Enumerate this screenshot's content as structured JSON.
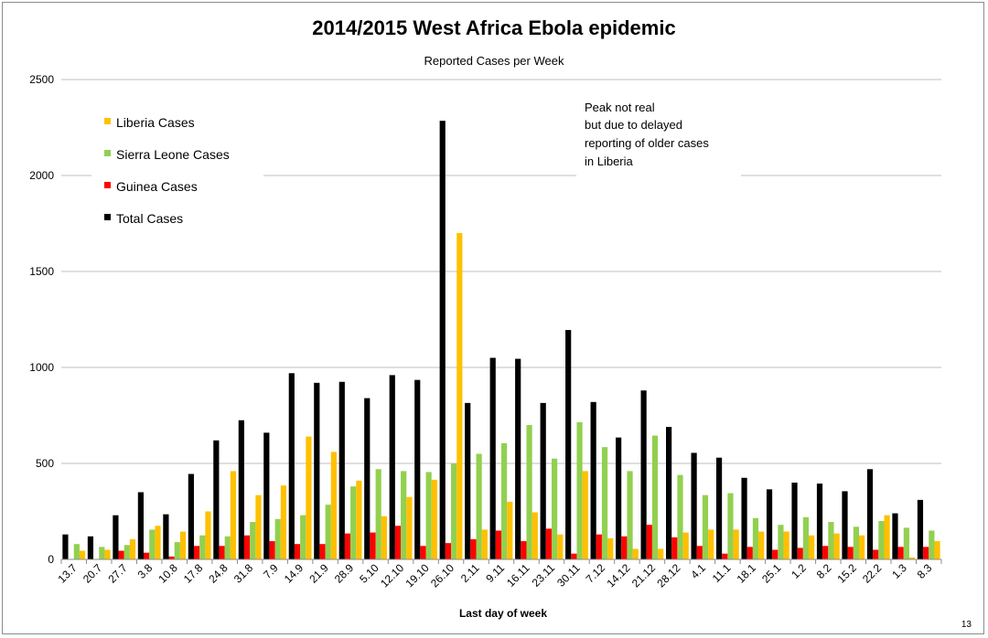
{
  "chart_data": {
    "type": "bar",
    "title": "2014/2015 West Africa Ebola epidemic",
    "subtitle": "Reported Cases per Week",
    "xlabel": "Last day of week",
    "ylabel": "",
    "ylim": [
      0,
      2500
    ],
    "yticks": [
      0,
      500,
      1000,
      1500,
      2000,
      2500
    ],
    "grid": true,
    "categories": [
      "13.7",
      "20.7",
      "27.7",
      "3.8",
      "10.8",
      "17.8",
      "24.8",
      "31.8",
      "7.9",
      "14.9",
      "21.9",
      "28.9",
      "5.10",
      "12.10",
      "19.10",
      "26.10",
      "2.11",
      "9.11",
      "16.11",
      "23.11",
      "30.11",
      "7.12",
      "14.12",
      "21.12",
      "28.12",
      "4.1",
      "11.1",
      "18.1",
      "25.1",
      "1.2",
      "8.2",
      "15.2",
      "22.2",
      "1.3",
      "8.3"
    ],
    "series": [
      {
        "name": "Total Cases",
        "color": "#000000",
        "values": [
          130,
          120,
          230,
          350,
          235,
          445,
          620,
          725,
          660,
          970,
          920,
          925,
          840,
          960,
          935,
          2285,
          815,
          1050,
          1045,
          815,
          1195,
          820,
          635,
          880,
          690,
          555,
          530,
          425,
          365,
          400,
          395,
          355,
          470,
          240,
          310
        ]
      },
      {
        "name": "Guinea Cases",
        "color": "#ff0000",
        "values": [
          0,
          0,
          45,
          35,
          15,
          70,
          70,
          125,
          95,
          80,
          80,
          135,
          140,
          175,
          70,
          85,
          105,
          150,
          95,
          160,
          30,
          130,
          120,
          180,
          115,
          70,
          30,
          65,
          50,
          60,
          70,
          65,
          50,
          65,
          65
        ]
      },
      {
        "name": "Sierra Leone Cases",
        "color": "#92d050",
        "values": [
          80,
          65,
          75,
          155,
          90,
          125,
          120,
          195,
          210,
          230,
          285,
          380,
          470,
          460,
          455,
          500,
          550,
          605,
          700,
          525,
          715,
          585,
          460,
          645,
          440,
          335,
          345,
          215,
          180,
          220,
          195,
          170,
          200,
          165,
          150
        ]
      },
      {
        "name": "Liberia Cases",
        "color": "#ffc000",
        "values": [
          45,
          50,
          105,
          175,
          145,
          250,
          460,
          335,
          385,
          640,
          560,
          410,
          225,
          325,
          415,
          1700,
          155,
          300,
          245,
          130,
          460,
          110,
          55,
          55,
          140,
          155,
          155,
          145,
          145,
          125,
          135,
          125,
          230,
          10,
          95
        ]
      }
    ],
    "legend": [
      "Liberia Cases",
      "Sierra Leone Cases",
      "Guinea Cases",
      "Total Cases"
    ],
    "legend_colors": [
      "#ffc000",
      "#92d050",
      "#ff0000",
      "#000000"
    ],
    "legend_placement": "top-left",
    "annotation": [
      "Peak not real",
      "but due to delayed",
      "reporting of older cases",
      "in Liberia"
    ]
  },
  "page_number": "13"
}
